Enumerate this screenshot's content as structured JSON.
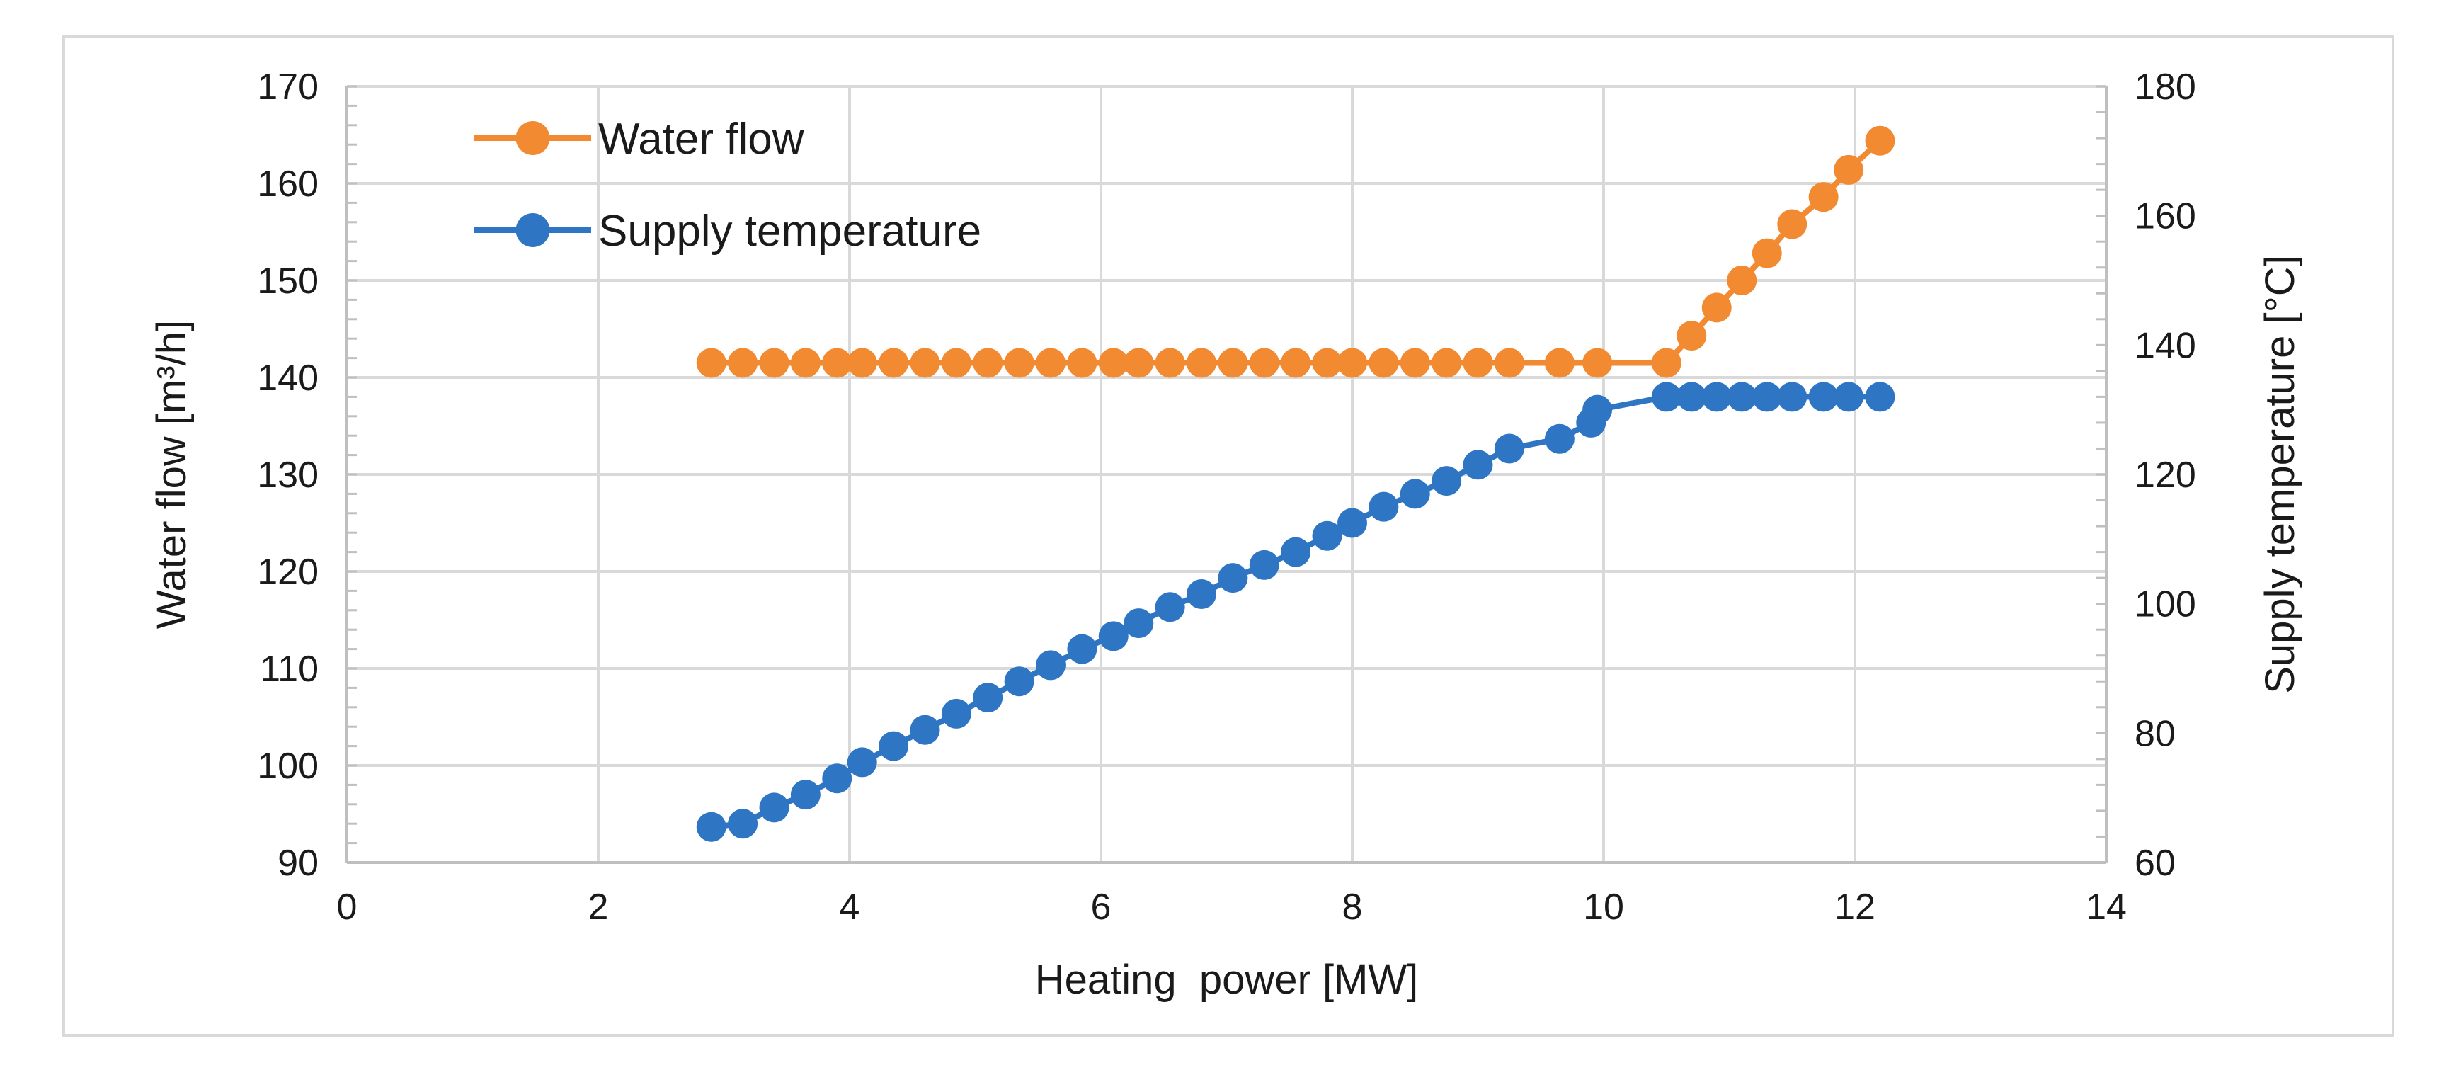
{
  "chart_data": {
    "type": "line",
    "title": "",
    "xlabel": "Heating  power [MW]",
    "ylabel": "Water flow [m³/h]",
    "y2label": "Supply temperature [°C]",
    "xlim": [
      0,
      14
    ],
    "ylim": [
      90,
      170
    ],
    "y2lim": [
      60,
      180
    ],
    "x_ticks": [
      0,
      2,
      4,
      6,
      8,
      10,
      12,
      14
    ],
    "y_ticks": [
      90,
      100,
      110,
      120,
      130,
      140,
      150,
      160,
      170
    ],
    "y2_ticks": [
      60,
      80,
      100,
      120,
      140,
      160,
      180
    ],
    "grid": true,
    "legend_position": "top-left",
    "series": [
      {
        "name": "Water flow",
        "axis": "left",
        "color": "#F28A32",
        "x": [
          2.9,
          3.15,
          3.4,
          3.65,
          3.9,
          4.1,
          4.35,
          4.6,
          4.85,
          5.1,
          5.35,
          5.6,
          5.85,
          6.1,
          6.3,
          6.55,
          6.8,
          7.05,
          7.3,
          7.55,
          7.8,
          8.0,
          8.25,
          8.5,
          8.75,
          9.0,
          9.25,
          9.65,
          9.95,
          10.5,
          10.7,
          10.9,
          11.1,
          11.3,
          11.5,
          11.75,
          11.95,
          12.2
        ],
        "y": [
          141.5,
          141.5,
          141.5,
          141.5,
          141.5,
          141.5,
          141.5,
          141.5,
          141.5,
          141.5,
          141.5,
          141.5,
          141.5,
          141.5,
          141.5,
          141.5,
          141.5,
          141.5,
          141.5,
          141.5,
          141.5,
          141.5,
          141.5,
          141.5,
          141.5,
          141.5,
          141.5,
          141.5,
          141.5,
          141.5,
          144.3,
          147.2,
          150.0,
          152.8,
          155.8,
          158.6,
          161.4,
          164.4
        ]
      },
      {
        "name": "Supply temperature",
        "axis": "right",
        "color": "#2E75C3",
        "x": [
          2.9,
          3.15,
          3.4,
          3.65,
          3.9,
          4.1,
          4.35,
          4.6,
          4.85,
          5.1,
          5.35,
          5.6,
          5.85,
          6.1,
          6.3,
          6.55,
          6.8,
          7.05,
          7.3,
          7.55,
          7.8,
          8.0,
          8.25,
          8.5,
          8.75,
          9.0,
          9.25,
          9.65,
          9.9,
          9.95,
          10.5,
          10.7,
          10.9,
          11.1,
          11.3,
          11.5,
          11.75,
          11.95,
          12.2
        ],
        "y": [
          65.5,
          66.0,
          68.5,
          70.5,
          73.0,
          75.5,
          78.0,
          80.5,
          83.0,
          85.5,
          88.0,
          90.5,
          93.0,
          95.0,
          97.0,
          99.5,
          101.5,
          104.0,
          106.0,
          108.0,
          110.5,
          112.5,
          115.0,
          117.0,
          119.0,
          121.5,
          124.0,
          125.5,
          128.0,
          130.0,
          132.0,
          132.0,
          132.0,
          132.0,
          132.0,
          132.0,
          132.0,
          132.0,
          132.0
        ]
      }
    ],
    "colors": {
      "grid": "#D9D9D9",
      "axis": "#BFBFBF",
      "frame": "#D9D9D9",
      "text": "#1A1A1A"
    }
  }
}
